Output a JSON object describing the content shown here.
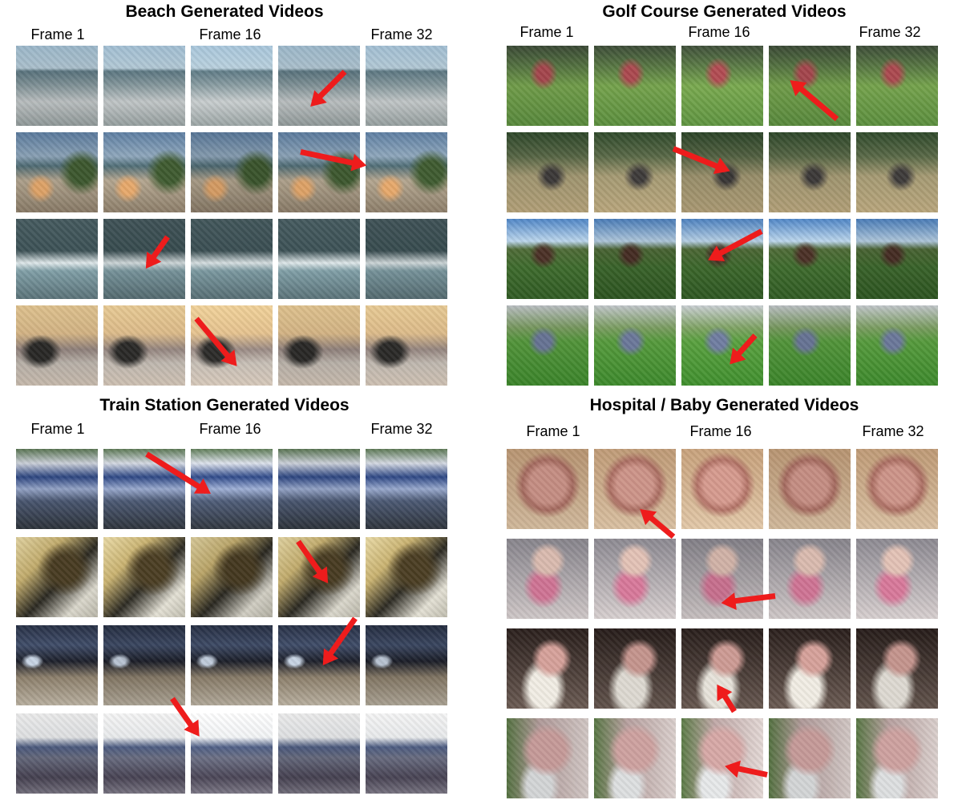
{
  "panels": [
    {
      "title": "Beach Generated Videos",
      "frame_labels": [
        "Frame 1",
        "Frame 16",
        "Frame 32"
      ],
      "scene_rows": [
        "beach1",
        "beach2",
        "beach3",
        "beach4"
      ]
    },
    {
      "title": "Golf Course Generated Videos",
      "frame_labels": [
        "Frame 1",
        "Frame 16",
        "Frame 32"
      ],
      "scene_rows": [
        "golf1",
        "golf2",
        "golf3",
        "golf4"
      ]
    },
    {
      "title": "Train Station Generated Videos",
      "frame_labels": [
        "Frame 1",
        "Frame 16",
        "Frame 32"
      ],
      "scene_rows": [
        "train1",
        "train2",
        "train3",
        "train4"
      ]
    },
    {
      "title": "Hospital / Baby Generated Videos",
      "frame_labels": [
        "Frame 1",
        "Frame 16",
        "Frame 32"
      ],
      "scene_rows": [
        "baby1",
        "baby2",
        "baby3",
        "baby4"
      ]
    }
  ],
  "arrow_color": "#ee1c1c"
}
